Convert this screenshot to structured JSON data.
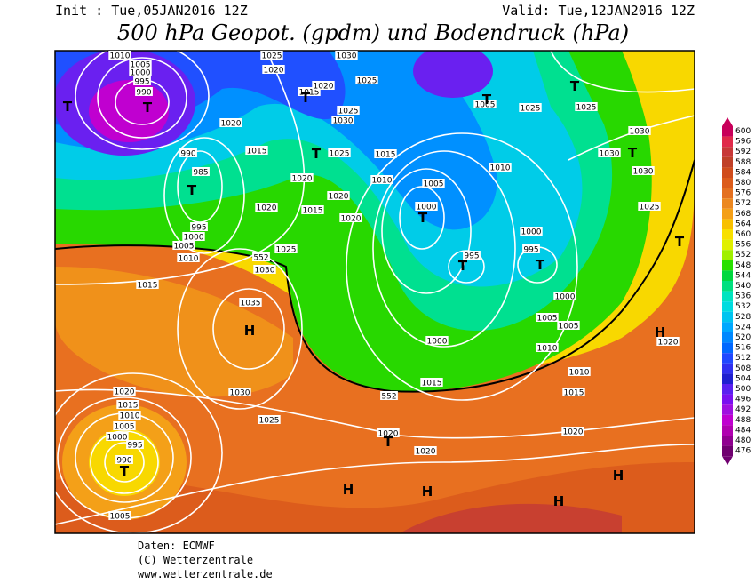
{
  "header": {
    "init": "Init : Tue,05JAN2016 12Z",
    "valid": "Valid: Tue,12JAN2016  12Z",
    "title": "500 hPa Geopot. (gpdm) und Bodendruck (hPa)"
  },
  "legend": {
    "levels": [
      600,
      596,
      592,
      588,
      584,
      580,
      576,
      572,
      568,
      564,
      560,
      556,
      552,
      548,
      544,
      540,
      536,
      532,
      528,
      524,
      520,
      516,
      512,
      508,
      504,
      500,
      496,
      492,
      488,
      484,
      480,
      476
    ],
    "colors": [
      "#c8005a",
      "#e02a4a",
      "#c83838",
      "#c04028",
      "#d04c1c",
      "#dc5c1c",
      "#e47020",
      "#ec8820",
      "#f4a018",
      "#f8c000",
      "#f8e000",
      "#e0f000",
      "#a0f000",
      "#28e000",
      "#00d840",
      "#00e080",
      "#00e4c0",
      "#00dce0",
      "#00c4f0",
      "#00a8ff",
      "#0088ff",
      "#0068ff",
      "#2048ff",
      "#3030f0",
      "#2020d0",
      "#5a20f0",
      "#7a10f0",
      "#a010e0",
      "#c000d0",
      "#b000b0",
      "#900090",
      "#700070"
    ]
  },
  "map": {
    "labels": [
      "1010",
      "1005",
      "1000",
      "995",
      "990",
      "T",
      "T",
      "990",
      "985",
      "T",
      "995",
      "1000",
      "1005",
      "1010",
      "1015",
      "1020",
      "1015",
      "1020",
      "1025",
      "1020",
      "1015",
      "1020",
      "1030",
      "1025",
      "T",
      "1025",
      "1030",
      "T",
      "1025",
      "1015",
      "1020",
      "1020",
      "1015",
      "1020",
      "1010",
      "1005",
      "1000",
      "T",
      "1025",
      "552",
      "1030",
      "1035",
      "H",
      "1005",
      "1025",
      "T",
      "1025",
      "1030",
      "1030",
      "T",
      "1030",
      "1010",
      "1000",
      "995",
      "995",
      "T",
      "T",
      "1025",
      "T",
      "1000",
      "1005",
      "1005",
      "1010",
      "1000",
      "1010",
      "1015",
      "1015",
      "552",
      "H",
      "1020",
      "1020",
      "1015",
      "1010",
      "1005",
      "1000",
      "995",
      "990",
      "T",
      "1005",
      "1030",
      "1025",
      "1020",
      "T",
      "1020",
      "1020",
      "H",
      "H",
      "H",
      "H",
      "T"
    ]
  },
  "footer": {
    "source": "Daten: ECMWF",
    "copyright": "(C) Wetterzentrale",
    "url": "www.wetterzentrale.de"
  }
}
